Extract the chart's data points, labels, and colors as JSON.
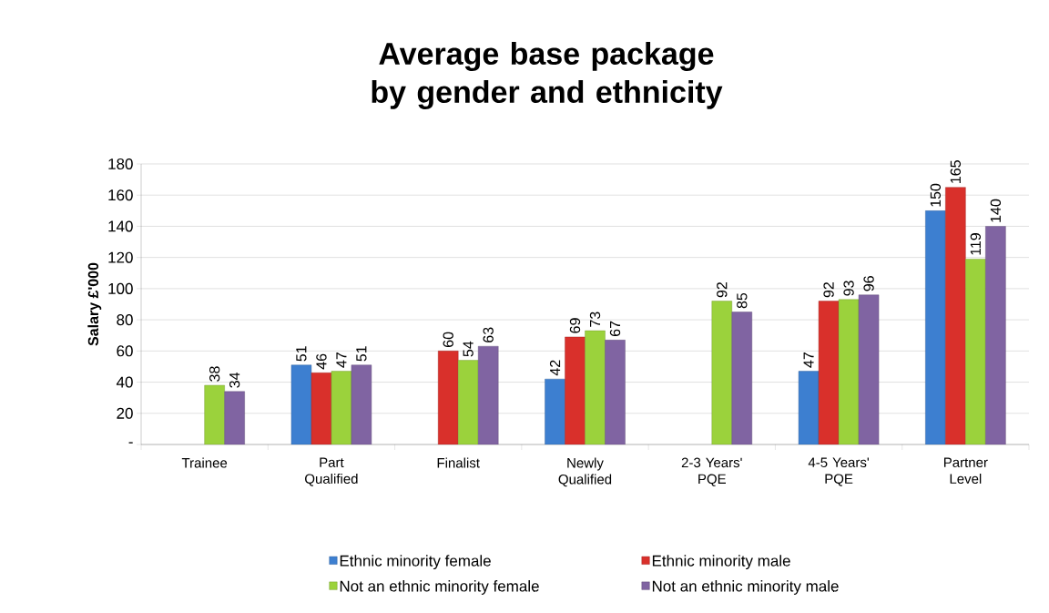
{
  "chart_data": {
    "type": "bar",
    "title": "Average base package by gender and ethnicity",
    "ylabel": "Salary £'000",
    "categories": [
      "Trainee",
      "Part Qualified",
      "Finalist",
      "Newly Qualified",
      "2-3 Years' PQE",
      "4-5 Years' PQE",
      "Partner Level"
    ],
    "series": [
      {
        "name": "Ethnic minority female",
        "color": "#3d7fd0",
        "values": [
          null,
          51,
          null,
          42,
          null,
          47,
          150
        ]
      },
      {
        "name": "Ethnic minority male",
        "color": "#d9302b",
        "values": [
          null,
          46,
          60,
          69,
          null,
          92,
          165
        ]
      },
      {
        "name": "Not an ethnic minority female",
        "color": "#9bd23c",
        "values": [
          38,
          47,
          54,
          73,
          92,
          93,
          119
        ]
      },
      {
        "name": "Not an ethnic minority male",
        "color": "#8064a2",
        "values": [
          34,
          51,
          63,
          67,
          85,
          96,
          140
        ]
      }
    ],
    "ylim": [
      0,
      180
    ],
    "yticks": [
      {
        "value": 0,
        "label": "-"
      },
      20,
      40,
      60,
      80,
      100,
      120,
      140,
      160,
      180
    ],
    "grid": "y",
    "legend": "bottom",
    "data_labels": true
  }
}
